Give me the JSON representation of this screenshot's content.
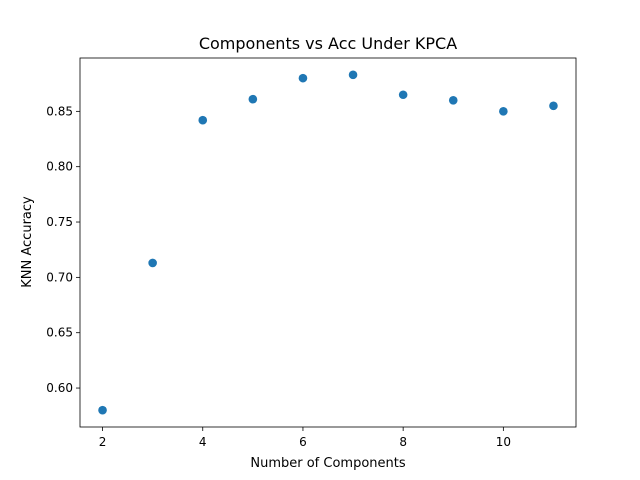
{
  "chart_data": {
    "type": "scatter",
    "title": "Components vs Acc Under KPCA",
    "xlabel": "Number of Components",
    "ylabel": "KNN Accuracy",
    "x": [
      2,
      3,
      4,
      5,
      6,
      7,
      8,
      9,
      10,
      11
    ],
    "y": [
      0.58,
      0.713,
      0.842,
      0.861,
      0.88,
      0.883,
      0.865,
      0.86,
      0.85,
      0.855
    ],
    "xlim": [
      1.55,
      11.45
    ],
    "ylim": [
      0.5648,
      0.8982
    ],
    "xticks": [
      2,
      4,
      6,
      8,
      10
    ],
    "xtick_labels": [
      "2",
      "4",
      "6",
      "8",
      "10"
    ],
    "yticks": [
      0.6,
      0.65,
      0.7,
      0.75,
      0.8,
      0.85
    ],
    "ytick_labels": [
      "0.60",
      "0.65",
      "0.70",
      "0.75",
      "0.80",
      "0.85"
    ],
    "grid": false,
    "marker_color": "#1f77b4"
  }
}
